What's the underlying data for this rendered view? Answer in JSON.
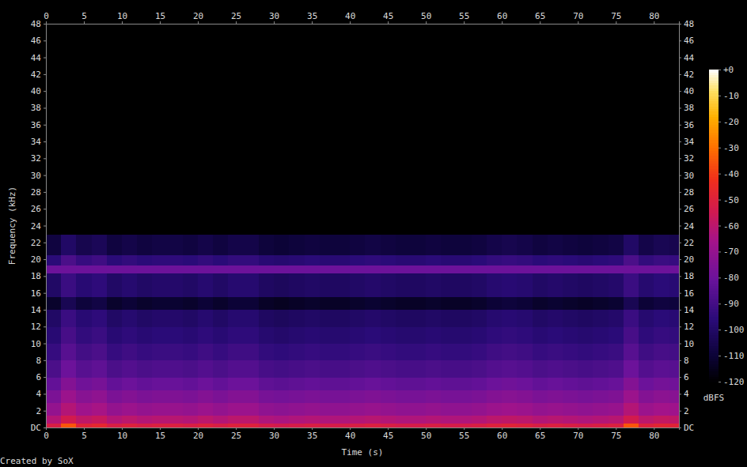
{
  "chart_data": {
    "type": "heatmap",
    "xlabel": "Time (s)",
    "ylabel": "Frequency (kHz)",
    "caption": "Created by SoX",
    "xlim": [
      0,
      83.3
    ],
    "ylim": [
      0,
      48
    ],
    "xticks": [
      0,
      5,
      10,
      15,
      20,
      25,
      30,
      35,
      40,
      45,
      50,
      55,
      60,
      65,
      70,
      75,
      80
    ],
    "yticks": [
      {
        "value": 0,
        "label": "DC"
      },
      2,
      4,
      6,
      8,
      10,
      12,
      14,
      16,
      18,
      20,
      22,
      24,
      26,
      28,
      30,
      32,
      34,
      36,
      38,
      40,
      42,
      44,
      46,
      48
    ],
    "x_bins": [
      0,
      2,
      4,
      6,
      8,
      10,
      12,
      14,
      16,
      18,
      20,
      22,
      24,
      26,
      28,
      30,
      32,
      34,
      36,
      38,
      40,
      42,
      44,
      46,
      48,
      50,
      52,
      54,
      56,
      58,
      60,
      62,
      64,
      66,
      68,
      70,
      72,
      74,
      76,
      78,
      80,
      82,
      83.3
    ],
    "y_bins": [
      0,
      0.5,
      1.5,
      3,
      4.5,
      6,
      8,
      10,
      12,
      14,
      15.5,
      18.4,
      19.3,
      20.5,
      23,
      48
    ],
    "cells": [
      [
        -52,
        -35,
        -49,
        -47,
        -52,
        -50,
        -52,
        -51,
        -51,
        -52,
        -50,
        -52,
        -50,
        -50,
        -53,
        -54,
        -53,
        -52,
        -53,
        -53,
        -52,
        -51,
        -52,
        -53,
        -53,
        -52,
        -53,
        -53,
        -52,
        -50,
        -49,
        -50,
        -52,
        -51,
        -52,
        -53,
        -52,
        -51,
        -35,
        -50,
        -48,
        -49
      ],
      [
        -62,
        -54,
        -59,
        -57,
        -62,
        -60,
        -62,
        -61,
        -61,
        -62,
        -60,
        -62,
        -60,
        -60,
        -63,
        -64,
        -63,
        -62,
        -63,
        -63,
        -62,
        -61,
        -62,
        -63,
        -63,
        -62,
        -63,
        -63,
        -62,
        -60,
        -59,
        -60,
        -62,
        -61,
        -62,
        -63,
        -62,
        -61,
        -54,
        -60,
        -58,
        -59
      ],
      [
        -70,
        -62,
        -67,
        -65,
        -70,
        -68,
        -70,
        -69,
        -69,
        -70,
        -68,
        -70,
        -68,
        -68,
        -71,
        -72,
        -71,
        -70,
        -71,
        -71,
        -70,
        -69,
        -70,
        -71,
        -71,
        -70,
        -71,
        -71,
        -70,
        -68,
        -67,
        -68,
        -70,
        -69,
        -70,
        -71,
        -70,
        -69,
        -62,
        -68,
        -66,
        -67
      ],
      [
        -76,
        -68,
        -73,
        -71,
        -76,
        -74,
        -76,
        -75,
        -75,
        -76,
        -74,
        -76,
        -74,
        -74,
        -77,
        -78,
        -77,
        -76,
        -77,
        -77,
        -76,
        -75,
        -76,
        -77,
        -77,
        -76,
        -77,
        -77,
        -76,
        -74,
        -73,
        -74,
        -76,
        -75,
        -76,
        -77,
        -76,
        -75,
        -68,
        -74,
        -72,
        -73
      ],
      [
        -82,
        -74,
        -79,
        -77,
        -82,
        -80,
        -82,
        -81,
        -81,
        -82,
        -80,
        -82,
        -80,
        -80,
        -83,
        -84,
        -83,
        -82,
        -83,
        -83,
        -82,
        -81,
        -82,
        -83,
        -83,
        -82,
        -83,
        -83,
        -82,
        -80,
        -79,
        -80,
        -82,
        -81,
        -82,
        -83,
        -82,
        -81,
        -74,
        -80,
        -78,
        -79
      ],
      [
        -88,
        -80,
        -85,
        -83,
        -88,
        -86,
        -88,
        -87,
        -87,
        -88,
        -86,
        -88,
        -86,
        -86,
        -89,
        -90,
        -89,
        -88,
        -89,
        -89,
        -88,
        -87,
        -88,
        -89,
        -89,
        -88,
        -89,
        -89,
        -88,
        -86,
        -85,
        -86,
        -88,
        -87,
        -88,
        -89,
        -88,
        -87,
        -80,
        -86,
        -84,
        -85
      ],
      [
        -93,
        -85,
        -90,
        -88,
        -93,
        -91,
        -93,
        -92,
        -92,
        -93,
        -91,
        -93,
        -91,
        -91,
        -94,
        -95,
        -94,
        -93,
        -94,
        -94,
        -93,
        -92,
        -93,
        -94,
        -94,
        -93,
        -94,
        -94,
        -93,
        -91,
        -90,
        -91,
        -93,
        -92,
        -93,
        -94,
        -93,
        -92,
        -85,
        -91,
        -89,
        -90
      ],
      [
        -97,
        -89,
        -94,
        -92,
        -97,
        -95,
        -97,
        -96,
        -96,
        -97,
        -95,
        -97,
        -95,
        -95,
        -98,
        -99,
        -98,
        -97,
        -98,
        -98,
        -97,
        -96,
        -97,
        -98,
        -98,
        -97,
        -98,
        -98,
        -97,
        -95,
        -94,
        -95,
        -97,
        -96,
        -97,
        -98,
        -97,
        -96,
        -89,
        -95,
        -93,
        -94
      ],
      [
        -100,
        -92,
        -97,
        -95,
        -100,
        -98,
        -100,
        -99,
        -99,
        -100,
        -98,
        -100,
        -98,
        -98,
        -101,
        -102,
        -101,
        -100,
        -101,
        -101,
        -100,
        -99,
        -100,
        -101,
        -101,
        -100,
        -101,
        -101,
        -100,
        -98,
        -97,
        -98,
        -100,
        -99,
        -100,
        -101,
        -100,
        -99,
        -92,
        -98,
        -96,
        -97
      ],
      [
        -112,
        -104,
        -109,
        -107,
        -112,
        -110,
        -112,
        -111,
        -111,
        -112,
        -110,
        -112,
        -110,
        -110,
        -113,
        -114,
        -113,
        -112,
        -113,
        -113,
        -112,
        -111,
        -112,
        -113,
        -113,
        -112,
        -113,
        -113,
        -112,
        -110,
        -109,
        -110,
        -112,
        -111,
        -112,
        -113,
        -112,
        -111,
        -104,
        -110,
        -108,
        -109
      ],
      [
        -100,
        -92,
        -97,
        -95,
        -100,
        -98,
        -100,
        -99,
        -99,
        -100,
        -98,
        -100,
        -98,
        -98,
        -101,
        -102,
        -101,
        -100,
        -101,
        -101,
        -100,
        -99,
        -100,
        -101,
        -101,
        -100,
        -101,
        -101,
        -100,
        -98,
        -97,
        -98,
        -100,
        -99,
        -100,
        -101,
        -100,
        -99,
        -92,
        -98,
        -96,
        -97
      ],
      [
        -80,
        -80,
        -80,
        -80,
        -80,
        -80,
        -80,
        -80,
        -80,
        -80,
        -80,
        -80,
        -80,
        -80,
        -80,
        -80,
        -80,
        -80,
        -80,
        -80,
        -80,
        -80,
        -80,
        -80,
        -80,
        -80,
        -80,
        -80,
        -80,
        -80,
        -80,
        -80,
        -80,
        -80,
        -80,
        -80,
        -80,
        -80,
        -80,
        -80,
        -80,
        -80
      ],
      [
        -96,
        -88,
        -93,
        -91,
        -96,
        -94,
        -96,
        -95,
        -95,
        -96,
        -94,
        -96,
        -94,
        -94,
        -97,
        -98,
        -97,
        -96,
        -97,
        -97,
        -96,
        -95,
        -96,
        -97,
        -97,
        -96,
        -97,
        -97,
        -96,
        -94,
        -93,
        -94,
        -96,
        -95,
        -96,
        -97,
        -96,
        -95,
        -88,
        -94,
        -92,
        -93
      ],
      [
        -108,
        -100,
        -105,
        -103,
        -108,
        -106,
        -108,
        -107,
        -107,
        -108,
        -106,
        -108,
        -106,
        -106,
        -109,
        -110,
        -109,
        -108,
        -109,
        -109,
        -108,
        -107,
        -108,
        -109,
        -109,
        -108,
        -109,
        -109,
        -108,
        -106,
        -105,
        -106,
        -108,
        -107,
        -108,
        -109,
        -108,
        -107,
        -100,
        -106,
        -104,
        -105
      ],
      [
        -125,
        -125,
        -125,
        -125,
        -125,
        -125,
        -125,
        -125,
        -125,
        -125,
        -125,
        -125,
        -125,
        -125,
        -125,
        -125,
        -125,
        -125,
        -125,
        -125,
        -125,
        -125,
        -125,
        -125,
        -125,
        -125,
        -125,
        -125,
        -125,
        -125,
        -125,
        -125,
        -125,
        -125,
        -125,
        -125,
        -125,
        -125,
        -125,
        -125,
        -125,
        -125
      ]
    ],
    "colorbar": {
      "label": "dBFS",
      "range": [
        -120,
        0
      ],
      "ticks": [
        {
          "value": 0,
          "label": "+0"
        },
        -10,
        -20,
        -30,
        -40,
        -50,
        -60,
        -70,
        -80,
        -90,
        -100,
        -110,
        -120
      ]
    }
  }
}
